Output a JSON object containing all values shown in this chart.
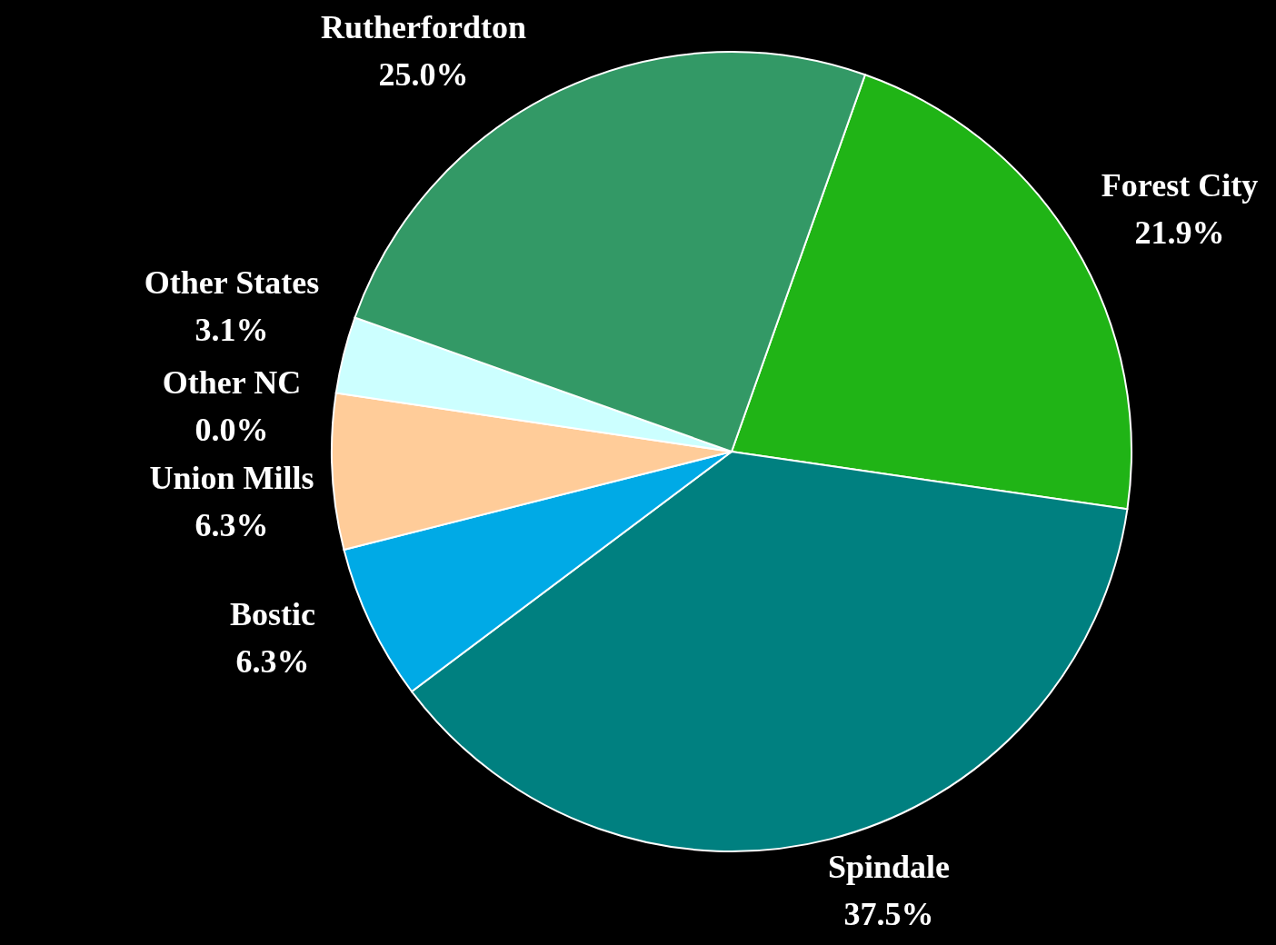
{
  "chart_data": {
    "type": "pie",
    "categories": [
      "Forest City",
      "Spindale",
      "Bostic",
      "Union Mills",
      "Other NC",
      "Other States",
      "Rutherfordton"
    ],
    "values": [
      21.9,
      37.5,
      6.3,
      6.3,
      0.0,
      3.1,
      25.0
    ],
    "value_labels": [
      "21.9%",
      "37.5%",
      "6.3%",
      "6.3%",
      "0.0%",
      "3.1%",
      "25.0%"
    ],
    "colors": [
      "#20b416",
      "#008080",
      "#00aae6",
      "#ffcc99",
      "#99ccff",
      "#ccffff",
      "#339966"
    ]
  }
}
